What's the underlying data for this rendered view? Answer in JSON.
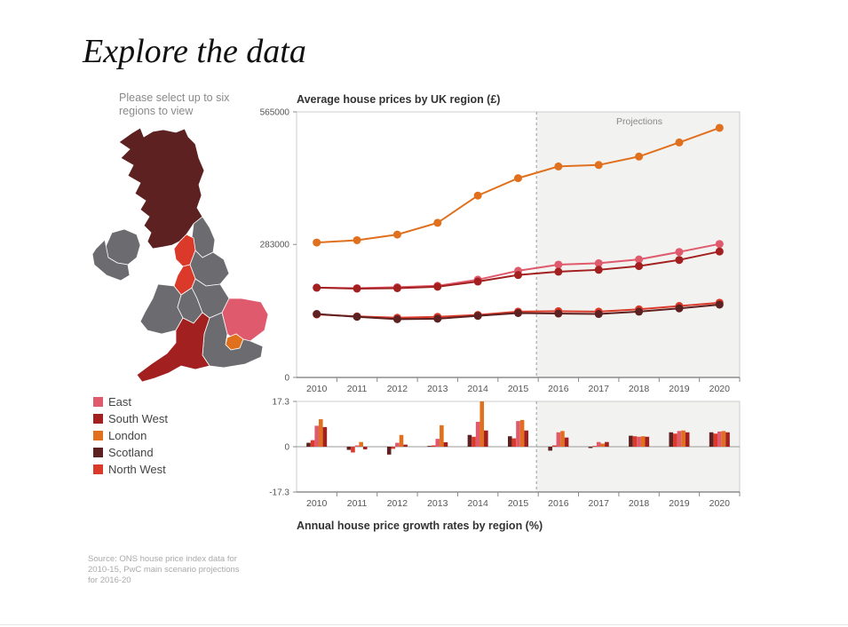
{
  "page": {
    "title": "Explore the data",
    "instructions": "Please select up to six regions to view",
    "source": "Source: ONS house price index data for 2010-15, PwC main scenario projections for 2016-20"
  },
  "legend": [
    {
      "label": "East",
      "color": "#e05a6d"
    },
    {
      "label": "South West",
      "color": "#a32020"
    },
    {
      "label": "London",
      "color": "#e0701e"
    },
    {
      "label": "Scotland",
      "color": "#5c2120"
    },
    {
      "label": "North West",
      "color": "#db3a2a"
    }
  ],
  "colors": {
    "unselected_region": "#6c6c70",
    "projection_shade": "#f2f2f0"
  },
  "chart_data": [
    {
      "type": "line",
      "title": "Average house prices by UK region (£)",
      "projection_label": "Projections",
      "projection_start": "2016",
      "x": [
        "2010",
        "2011",
        "2012",
        "2013",
        "2014",
        "2015",
        "2016",
        "2017",
        "2018",
        "2019",
        "2020"
      ],
      "ylim": [
        0,
        565000
      ],
      "yticks": [
        "565000",
        "283000",
        "0"
      ],
      "grid": false,
      "series": [
        {
          "name": "London",
          "color": "#e0701e",
          "values": [
            287000,
            292000,
            304000,
            329000,
            387000,
            424000,
            449000,
            452000,
            470000,
            500000,
            531000
          ]
        },
        {
          "name": "East",
          "color": "#e05a6d",
          "values": [
            191000,
            190000,
            192000,
            195000,
            208000,
            227000,
            240000,
            243000,
            251000,
            267000,
            284000
          ]
        },
        {
          "name": "South West",
          "color": "#a32020",
          "values": [
            191000,
            189000,
            190000,
            193000,
            204000,
            218000,
            225000,
            229000,
            237000,
            250000,
            268000
          ]
        },
        {
          "name": "North West",
          "color": "#db3a2a",
          "values": [
            134000,
            130000,
            127000,
            129000,
            133000,
            140000,
            141000,
            140000,
            145000,
            152000,
            159000
          ]
        },
        {
          "name": "Scotland",
          "color": "#5c2120",
          "values": [
            135000,
            129000,
            124000,
            125000,
            131000,
            137000,
            136000,
            135000,
            140000,
            147000,
            155000
          ]
        }
      ]
    },
    {
      "type": "bar",
      "title": "Annual house price growth rates by region (%)",
      "categories": [
        "2010",
        "2011",
        "2012",
        "2013",
        "2014",
        "2015",
        "2016",
        "2017",
        "2018",
        "2019",
        "2020"
      ],
      "ylim": [
        -17.3,
        17.3
      ],
      "yticks": [
        "17.3",
        "0",
        "-17.3"
      ],
      "series": [
        {
          "name": "Scotland",
          "color": "#5c2120",
          "values": [
            1.5,
            -1.2,
            -3.0,
            0.3,
            4.5,
            4.0,
            -1.5,
            -0.5,
            4.2,
            5.5,
            5.5
          ]
        },
        {
          "name": "North West",
          "color": "#db3a2a",
          "values": [
            2.5,
            -2.2,
            -0.8,
            0.5,
            3.8,
            3.2,
            0.5,
            0.3,
            4.0,
            5.0,
            5.0
          ]
        },
        {
          "name": "East",
          "color": "#e05a6d",
          "values": [
            8.0,
            0.5,
            1.5,
            3.0,
            9.5,
            9.8,
            5.5,
            1.8,
            3.8,
            6.0,
            5.8
          ]
        },
        {
          "name": "London",
          "color": "#e0701e",
          "values": [
            10.5,
            1.8,
            4.5,
            8.2,
            17.3,
            10.2,
            6.0,
            1.2,
            4.0,
            6.2,
            6.0
          ]
        },
        {
          "name": "South West",
          "color": "#a32020",
          "values": [
            7.5,
            -1.0,
            0.8,
            1.7,
            6.2,
            6.2,
            3.5,
            1.8,
            3.8,
            5.5,
            5.5
          ]
        }
      ]
    }
  ]
}
